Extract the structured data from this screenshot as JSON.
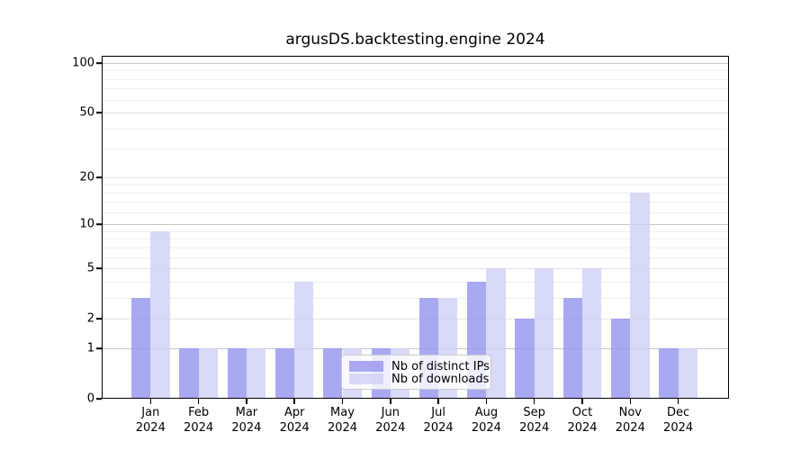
{
  "chart_data": {
    "type": "bar",
    "title": "argusDS.backtesting.engine 2024",
    "categories": [
      "Jan 2024",
      "Feb 2024",
      "Mar 2024",
      "Apr 2024",
      "May 2024",
      "Jun 2024",
      "Jul 2024",
      "Aug 2024",
      "Sep 2024",
      "Oct 2024",
      "Nov 2024",
      "Dec 2024"
    ],
    "series": [
      {
        "key": "distinct-ips",
        "name": "Nb of distinct IPs",
        "color": "rgba(148,148,240,0.8)",
        "values": [
          3,
          1,
          1,
          1,
          1,
          1,
          3,
          4,
          2,
          3,
          2,
          1
        ]
      },
      {
        "key": "downloads",
        "name": "Nb of downloads",
        "color": "rgba(208,208,246,0.8)",
        "values": [
          9,
          1,
          1,
          4,
          1,
          1,
          3,
          5,
          5,
          5,
          16,
          1
        ]
      }
    ],
    "xlabel": "",
    "ylabel": "",
    "y_scale": "log1p",
    "ylim": [
      0,
      110
    ],
    "y_ticks": [
      0,
      1,
      2,
      5,
      10,
      20,
      50,
      100
    ],
    "y_major_gridlines": [
      1,
      10,
      100
    ],
    "y_minor_gridlines": [
      3,
      4,
      6,
      7,
      8,
      9,
      12,
      14,
      16,
      18,
      30,
      40,
      60,
      70,
      80,
      90
    ],
    "grid": "on",
    "legend_position": "lower center"
  },
  "colors": {
    "grid_major": "#c6c6c6",
    "grid_labeled_minor": "#e4e4e4",
    "grid_minor": "#efefef",
    "axis": "#000000",
    "background": "#ffffff"
  }
}
